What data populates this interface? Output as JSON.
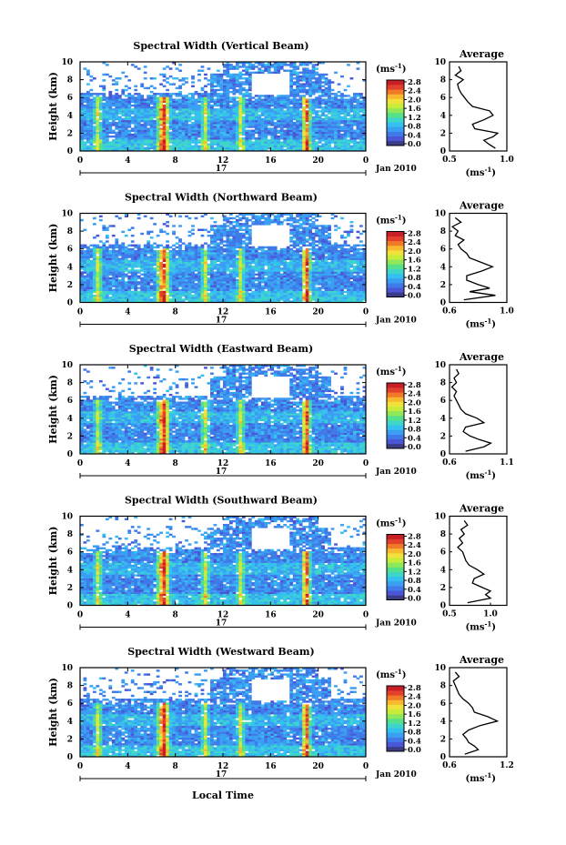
{
  "figure": {
    "xlabel": "Local Time",
    "date_label": "Jan 2010",
    "day_label": "17",
    "avg_title": "Average",
    "unit_label": "(ms",
    "unit_sup": "-1",
    "unit_close": ")",
    "ylabel": "Height (km)"
  },
  "colorbar": {
    "ticks": [
      "2.8",
      "2.4",
      "2.0",
      "1.6",
      "1.2",
      "0.8",
      "0.4",
      "0.0"
    ],
    "colors": [
      "#3b3b86",
      "#4a56d6",
      "#3f7ae8",
      "#3a9ef2",
      "#36c0f0",
      "#3ed6c8",
      "#55e08a",
      "#8fe85a",
      "#c8ec3c",
      "#f0e23a",
      "#f8b830",
      "#f07a28",
      "#e2402a",
      "#c81e26"
    ]
  },
  "chart_data": [
    {
      "type": "heatmap",
      "title": "Spectral Width (Vertical Beam)",
      "x_ticks": [
        "0",
        "4",
        "8",
        "12",
        "16",
        "20",
        "0"
      ],
      "y_ticks": [
        "0",
        "2",
        "4",
        "6",
        "8",
        "10"
      ],
      "xlim": [
        0,
        24
      ],
      "ylim": [
        0,
        10
      ],
      "zlim": [
        0.0,
        2.8
      ],
      "high_columns_hours": [
        1.5,
        7.0,
        10.5,
        13.5,
        19.0
      ],
      "avg_x_ticks": [
        "0.5",
        "1.0"
      ],
      "avg_xlim": [
        0.5,
        1.0
      ],
      "avg_profile": [
        [
          0.9,
          0.3
        ],
        [
          0.84,
          0.8
        ],
        [
          0.8,
          1.2
        ],
        [
          0.88,
          1.6
        ],
        [
          0.92,
          2.0
        ],
        [
          0.72,
          2.5
        ],
        [
          0.7,
          3.0
        ],
        [
          0.8,
          3.5
        ],
        [
          0.88,
          4.0
        ],
        [
          0.85,
          4.5
        ],
        [
          0.7,
          5.0
        ],
        [
          0.66,
          5.5
        ],
        [
          0.63,
          6.0
        ],
        [
          0.6,
          6.5
        ],
        [
          0.58,
          7.0
        ],
        [
          0.57,
          7.5
        ],
        [
          0.62,
          8.0
        ],
        [
          0.55,
          8.5
        ],
        [
          0.6,
          9.0
        ],
        [
          0.58,
          9.5
        ]
      ]
    },
    {
      "type": "heatmap",
      "title": "Spectral Width (Northward Beam)",
      "x_ticks": [
        "0",
        "4",
        "8",
        "12",
        "16",
        "20",
        "0"
      ],
      "y_ticks": [
        "0",
        "2",
        "4",
        "6",
        "8",
        "10"
      ],
      "xlim": [
        0,
        24
      ],
      "ylim": [
        0,
        10
      ],
      "zlim": [
        0.0,
        2.8
      ],
      "high_columns_hours": [
        1.5,
        7.0,
        10.5,
        13.5,
        19.0
      ],
      "avg_x_ticks": [
        "0.6",
        "1.0"
      ],
      "avg_xlim": [
        0.6,
        1.0
      ],
      "avg_profile": [
        [
          0.7,
          0.3
        ],
        [
          0.92,
          0.8
        ],
        [
          0.74,
          1.2
        ],
        [
          0.88,
          1.6
        ],
        [
          0.8,
          2.0
        ],
        [
          0.72,
          2.5
        ],
        [
          0.72,
          3.0
        ],
        [
          0.82,
          3.5
        ],
        [
          0.9,
          4.0
        ],
        [
          0.82,
          4.5
        ],
        [
          0.74,
          5.0
        ],
        [
          0.72,
          5.5
        ],
        [
          0.68,
          6.0
        ],
        [
          0.66,
          6.5
        ],
        [
          0.7,
          7.0
        ],
        [
          0.64,
          7.5
        ],
        [
          0.66,
          8.0
        ],
        [
          0.62,
          8.5
        ],
        [
          0.68,
          9.0
        ],
        [
          0.64,
          9.5
        ]
      ]
    },
    {
      "type": "heatmap",
      "title": "Spectral Width (Eastward Beam)",
      "x_ticks": [
        "0",
        "4",
        "8",
        "12",
        "16",
        "20",
        "0"
      ],
      "y_ticks": [
        "0",
        "2",
        "4",
        "6",
        "8",
        "10"
      ],
      "xlim": [
        0,
        24
      ],
      "ylim": [
        0,
        10
      ],
      "zlim": [
        0.0,
        2.8
      ],
      "high_columns_hours": [
        1.5,
        7.0,
        10.5,
        13.5,
        19.0
      ],
      "avg_x_ticks": [
        "0.6",
        "1.1"
      ],
      "avg_xlim": [
        0.6,
        1.1
      ],
      "avg_profile": [
        [
          0.74,
          0.3
        ],
        [
          0.9,
          0.8
        ],
        [
          0.96,
          1.2
        ],
        [
          0.86,
          1.6
        ],
        [
          0.78,
          2.0
        ],
        [
          0.72,
          2.5
        ],
        [
          0.74,
          3.0
        ],
        [
          0.9,
          3.5
        ],
        [
          0.84,
          4.0
        ],
        [
          0.74,
          4.5
        ],
        [
          0.7,
          5.0
        ],
        [
          0.68,
          5.5
        ],
        [
          0.66,
          6.0
        ],
        [
          0.64,
          6.5
        ],
        [
          0.66,
          7.0
        ],
        [
          0.62,
          7.5
        ],
        [
          0.66,
          8.0
        ],
        [
          0.64,
          8.5
        ],
        [
          0.68,
          9.0
        ],
        [
          0.66,
          9.5
        ]
      ]
    },
    {
      "type": "heatmap",
      "title": "Spectral Width (Southward Beam)",
      "x_ticks": [
        "0",
        "4",
        "8",
        "12",
        "16",
        "20",
        "0"
      ],
      "y_ticks": [
        "0",
        "2",
        "4",
        "6",
        "8",
        "10"
      ],
      "xlim": [
        0,
        24
      ],
      "ylim": [
        0,
        10
      ],
      "zlim": [
        0.0,
        2.8
      ],
      "high_columns_hours": [
        1.5,
        7.0,
        10.5,
        13.5,
        19.0
      ],
      "avg_x_ticks": [
        "0.5",
        "1.0"
      ],
      "avg_xlim": [
        0.5,
        1.2
      ],
      "avg_profile": [
        [
          0.72,
          0.3
        ],
        [
          1.0,
          0.8
        ],
        [
          0.94,
          1.2
        ],
        [
          1.0,
          1.6
        ],
        [
          0.9,
          2.0
        ],
        [
          0.78,
          2.5
        ],
        [
          0.8,
          3.0
        ],
        [
          0.92,
          3.5
        ],
        [
          0.84,
          4.0
        ],
        [
          0.74,
          4.5
        ],
        [
          0.7,
          5.0
        ],
        [
          0.68,
          5.5
        ],
        [
          0.66,
          6.0
        ],
        [
          0.6,
          6.5
        ],
        [
          0.66,
          7.0
        ],
        [
          0.62,
          7.5
        ],
        [
          0.68,
          8.0
        ],
        [
          0.64,
          8.5
        ],
        [
          0.72,
          9.0
        ],
        [
          0.68,
          9.5
        ]
      ]
    },
    {
      "type": "heatmap",
      "title": "Spectral Width (Westward Beam)",
      "x_ticks": [
        "0",
        "4",
        "8",
        "12",
        "16",
        "20",
        "0"
      ],
      "y_ticks": [
        "0",
        "2",
        "4",
        "6",
        "8",
        "10"
      ],
      "xlim": [
        0,
        24
      ],
      "ylim": [
        0,
        10
      ],
      "zlim": [
        0.0,
        2.8
      ],
      "high_columns_hours": [
        1.5,
        7.0,
        10.5,
        13.5,
        19.0
      ],
      "avg_x_ticks": [
        "0.6",
        "1.2"
      ],
      "avg_xlim": [
        0.6,
        1.2
      ],
      "avg_profile": [
        [
          0.76,
          0.3
        ],
        [
          0.9,
          0.8
        ],
        [
          0.86,
          1.2
        ],
        [
          0.8,
          1.6
        ],
        [
          0.78,
          2.0
        ],
        [
          0.74,
          2.5
        ],
        [
          0.8,
          3.0
        ],
        [
          0.92,
          3.5
        ],
        [
          1.1,
          4.0
        ],
        [
          1.0,
          4.5
        ],
        [
          0.86,
          5.0
        ],
        [
          0.84,
          5.5
        ],
        [
          0.8,
          6.0
        ],
        [
          0.74,
          6.5
        ],
        [
          0.7,
          7.0
        ],
        [
          0.68,
          7.5
        ],
        [
          0.66,
          8.0
        ],
        [
          0.64,
          8.5
        ],
        [
          0.7,
          9.0
        ],
        [
          0.66,
          9.5
        ]
      ]
    }
  ]
}
